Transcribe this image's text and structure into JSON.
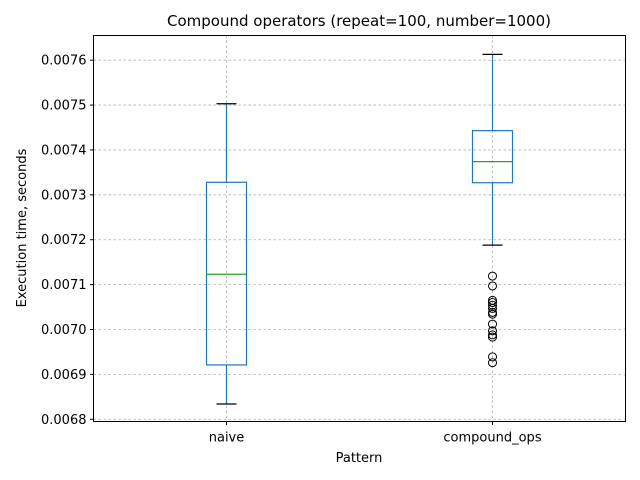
{
  "chart_data": {
    "type": "box",
    "title": "Compound operators (repeat=100, number=1000)",
    "xlabel": "Pattern",
    "ylabel": "Execution time, seconds",
    "categories": [
      "naive",
      "compound_ops"
    ],
    "ylim": [
      0.006795,
      0.007655
    ],
    "yticks": [
      "0.0068",
      "0.0069",
      "0.0070",
      "0.0071",
      "0.0072",
      "0.0073",
      "0.0074",
      "0.0075",
      "0.0076"
    ],
    "grid": true,
    "boxes": [
      {
        "category": "naive",
        "whisker_low": 0.006834,
        "q1": 0.006921,
        "median": 0.007123,
        "q3": 0.007328,
        "whisker_high": 0.007503,
        "outliers": []
      },
      {
        "category": "compound_ops",
        "whisker_low": 0.007188,
        "q1": 0.007327,
        "median": 0.007374,
        "q3": 0.007443,
        "whisker_high": 0.007613,
        "outliers": [
          0.007119,
          0.007097,
          0.007065,
          0.00706,
          0.007054,
          0.007047,
          0.007038,
          0.007034,
          0.007012,
          0.006997,
          0.006988,
          0.006983,
          0.006939,
          0.006926
        ]
      }
    ],
    "colors": {
      "box": "#1f77b4",
      "median": "#2ca02c",
      "whisker_cap": "#000000",
      "grid": "#b0b0b0"
    }
  }
}
